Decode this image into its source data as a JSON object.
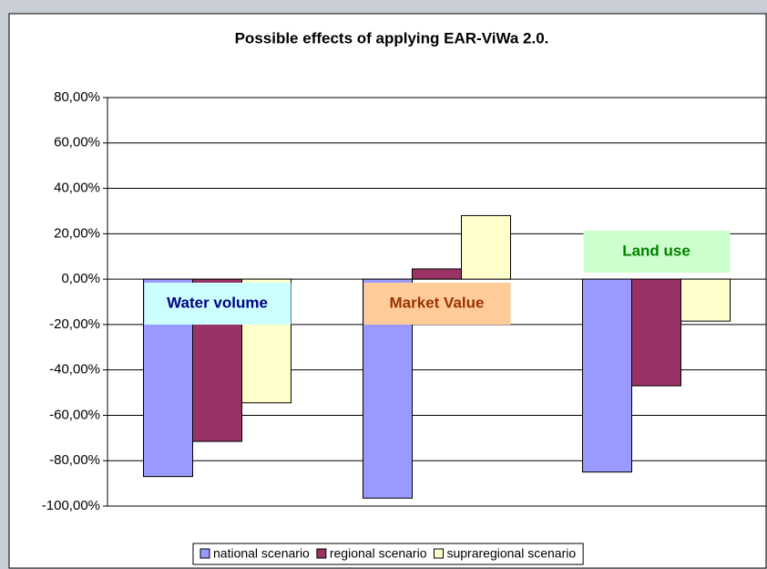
{
  "chart_data": {
    "type": "bar",
    "title": "Possible effects of applying EAR-ViWa 2.0.",
    "categories": [
      "Water volume",
      "Market Value",
      "Land use"
    ],
    "category_colors": [
      {
        "fill": "#ccffff",
        "text": "#000080"
      },
      {
        "fill": "#ffcc99",
        "text": "#993300"
      },
      {
        "fill": "#ccffcc",
        "text": "#008000"
      }
    ],
    "series": [
      {
        "name": "national scenario",
        "color": "#9999ff",
        "values": [
          -87,
          -96.5,
          -85
        ]
      },
      {
        "name": "regional scenario",
        "color": "#993366",
        "values": [
          -71.5,
          4.5,
          -47
        ]
      },
      {
        "name": "supraregional scenario",
        "color": "#ffffcc",
        "values": [
          -54.5,
          28,
          -18.5
        ]
      }
    ],
    "ylim": [
      -100,
      80
    ],
    "yticks": [
      {
        "value": -100,
        "label": "-100,00%"
      },
      {
        "value": -80,
        "label": "-80,00%"
      },
      {
        "value": -60,
        "label": "-60,00%"
      },
      {
        "value": -40,
        "label": "-40,00%"
      },
      {
        "value": -20,
        "label": "-20,00%"
      },
      {
        "value": 0,
        "label": "0,00%"
      },
      {
        "value": 20,
        "label": "20,00%"
      },
      {
        "value": 40,
        "label": "40,00%"
      },
      {
        "value": 60,
        "label": "60,00%"
      },
      {
        "value": 80,
        "label": "80,00%"
      }
    ],
    "grid": true,
    "legend": "bottom"
  }
}
